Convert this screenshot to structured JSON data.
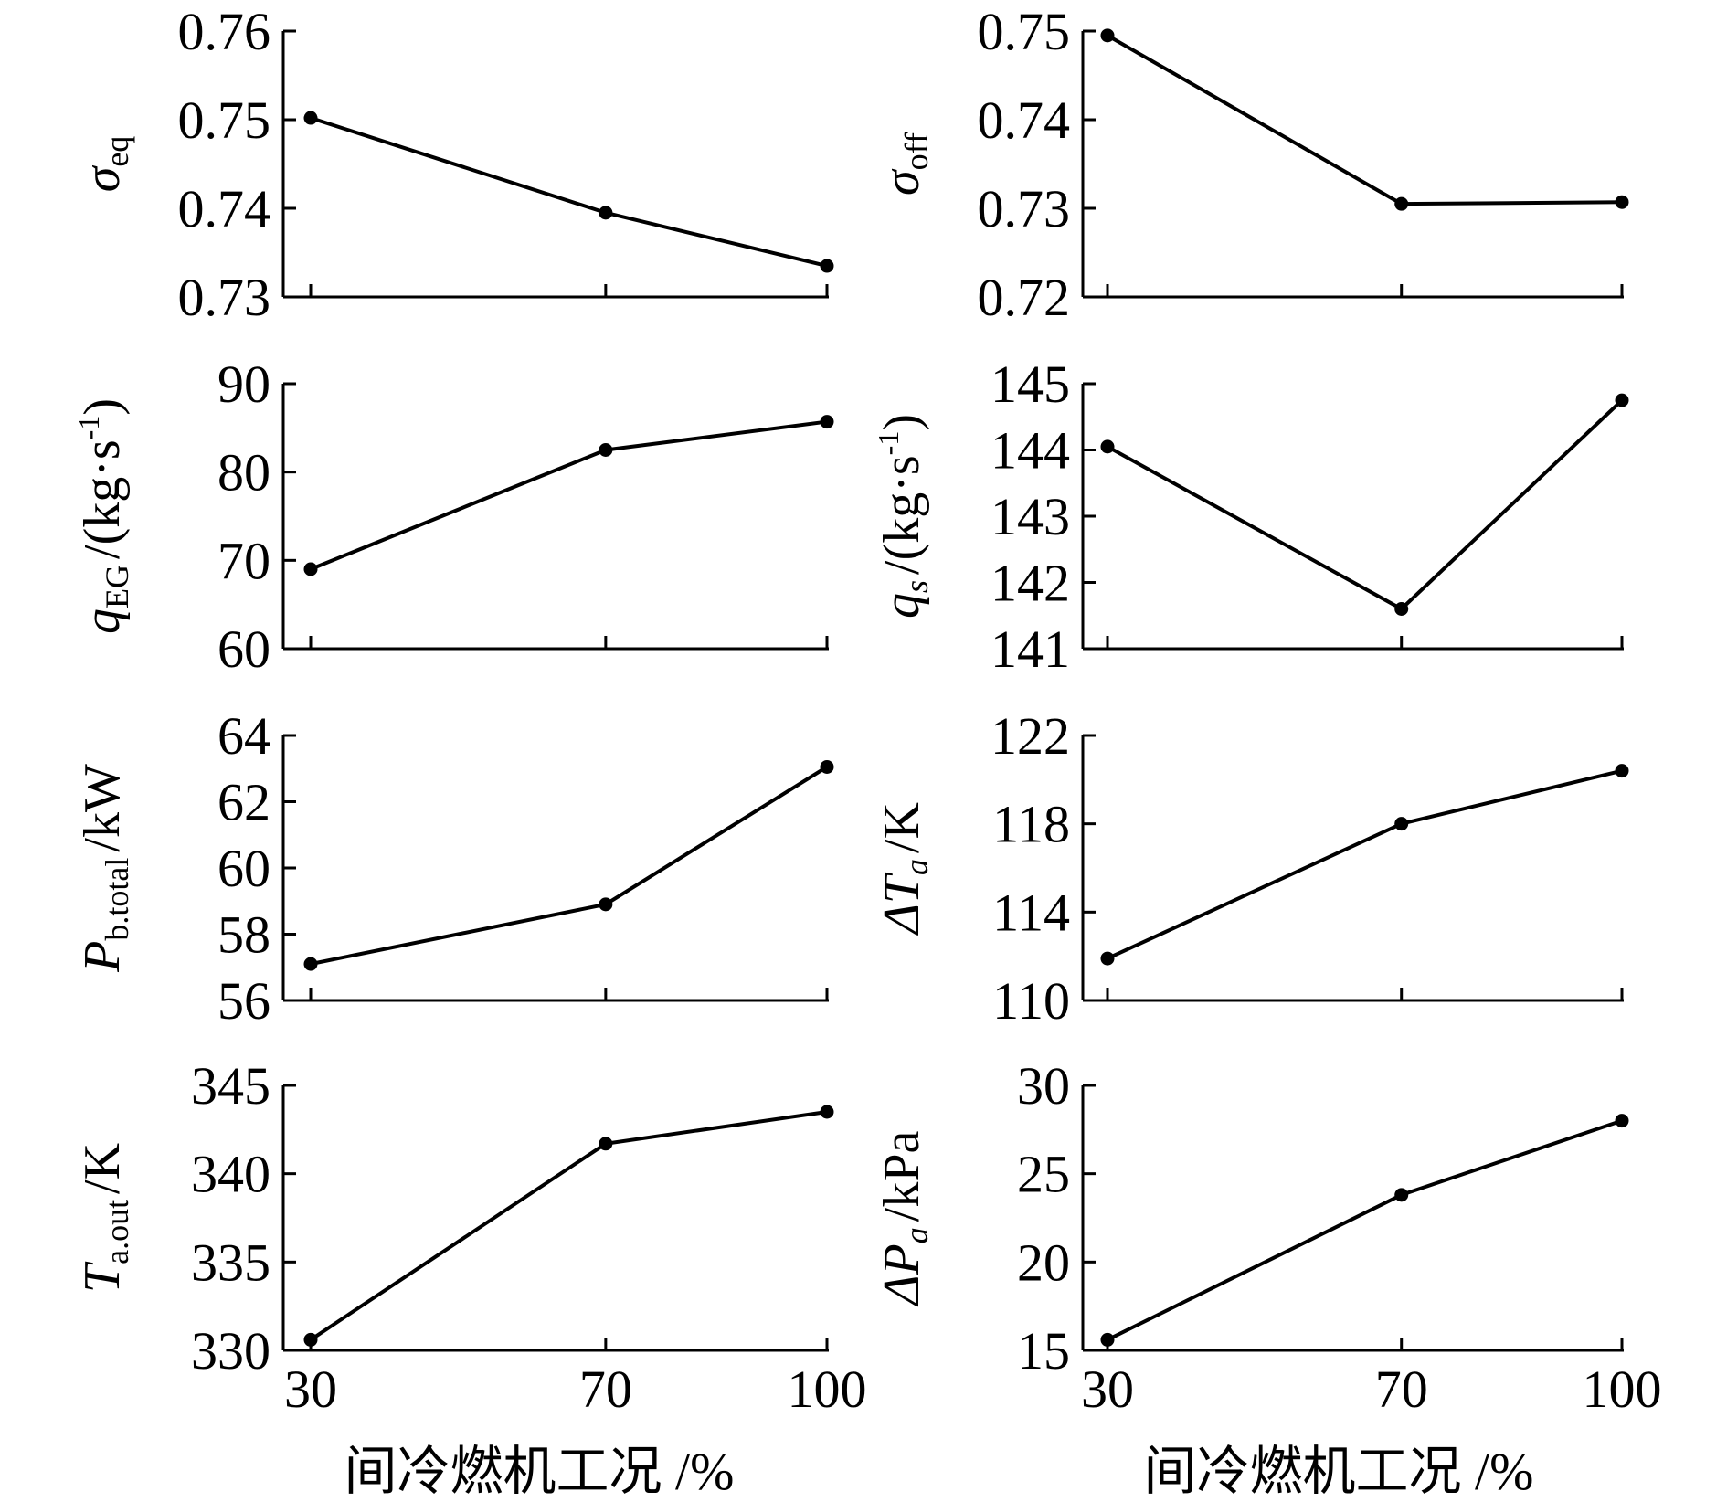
{
  "figure": {
    "xlabels": [
      "间冷燃机工况 /%",
      "间冷燃机工况 /%"
    ]
  },
  "chart_data": [
    {
      "type": "line",
      "id": "sigma-eq",
      "ylabel": {
        "main": "σ",
        "sub": "eq",
        "sup": "",
        "rest": ""
      },
      "x": [
        30,
        70,
        100
      ],
      "y": [
        0.7502,
        0.7395,
        0.7335
      ],
      "ylim": [
        0.73,
        0.76
      ],
      "yticks": [
        "0.73",
        "0.74",
        "0.75",
        "0.76"
      ],
      "xticks": [
        "30",
        "70",
        "100"
      ],
      "show_xtick_labels": false
    },
    {
      "type": "line",
      "id": "sigma-off",
      "ylabel": {
        "main": "σ",
        "sub": "off",
        "sup": "",
        "rest": ""
      },
      "x": [
        30,
        70,
        100
      ],
      "y": [
        0.7495,
        0.7305,
        0.7307
      ],
      "ylim": [
        0.72,
        0.75
      ],
      "yticks": [
        "0.72",
        "0.73",
        "0.74",
        "0.75"
      ],
      "xticks": [
        "30",
        "70",
        "100"
      ],
      "show_xtick_labels": false
    },
    {
      "type": "line",
      "id": "q-eg",
      "ylabel": {
        "main": "q",
        "sub": "EG",
        "sup": "-1",
        "rest": "/(kg·s",
        "close": ")"
      },
      "x": [
        30,
        70,
        100
      ],
      "y": [
        69,
        82.5,
        85.7
      ],
      "ylim": [
        60,
        90
      ],
      "yticks": [
        "60",
        "70",
        "80",
        "90"
      ],
      "xticks": [
        "30",
        "70",
        "100"
      ],
      "show_xtick_labels": false
    },
    {
      "type": "line",
      "id": "q-s",
      "ylabel": {
        "main": "q",
        "sub": "s",
        "sup": "-1",
        "rest": "/(kg·s",
        "close": ")"
      },
      "x": [
        30,
        70,
        100
      ],
      "y": [
        144.05,
        141.6,
        144.75
      ],
      "ylim": [
        141,
        145
      ],
      "yticks": [
        "141",
        "142",
        "143",
        "144",
        "145"
      ],
      "xticks": [
        "30",
        "70",
        "100"
      ],
      "show_xtick_labels": false
    },
    {
      "type": "line",
      "id": "p-b-total",
      "ylabel": {
        "main": "P",
        "sub": "b.total",
        "sup": "",
        "rest": "/kW"
      },
      "x": [
        30,
        70,
        100
      ],
      "y": [
        57.1,
        58.9,
        63.05
      ],
      "ylim": [
        56,
        64
      ],
      "yticks": [
        "56",
        "58",
        "60",
        "62",
        "64"
      ],
      "xticks": [
        "30",
        "70",
        "100"
      ],
      "show_xtick_labels": false
    },
    {
      "type": "line",
      "id": "delta-t-a",
      "ylabel": {
        "main": "ΔT",
        "sub": "a",
        "sup": "",
        "rest": "/K"
      },
      "x": [
        30,
        70,
        100
      ],
      "y": [
        111.9,
        118,
        120.4
      ],
      "ylim": [
        110,
        122
      ],
      "yticks": [
        "110",
        "114",
        "118",
        "122"
      ],
      "xticks": [
        "30",
        "70",
        "100"
      ],
      "show_xtick_labels": false
    },
    {
      "type": "line",
      "id": "t-a-out",
      "ylabel": {
        "main": "T",
        "sub": "a.out",
        "sup": "",
        "rest": "/K"
      },
      "x": [
        30,
        70,
        100
      ],
      "y": [
        330.6,
        341.7,
        343.5
      ],
      "ylim": [
        330,
        345
      ],
      "yticks": [
        "330",
        "335",
        "340",
        "345"
      ],
      "xticks": [
        "30",
        "70",
        "100"
      ],
      "show_xtick_labels": true
    },
    {
      "type": "line",
      "id": "delta-p-a",
      "ylabel": {
        "main": "ΔP",
        "sub": "a",
        "sup": "",
        "rest": "/kPa"
      },
      "x": [
        30,
        70,
        100
      ],
      "y": [
        15.6,
        23.8,
        28
      ],
      "ylim": [
        15,
        30
      ],
      "yticks": [
        "15",
        "20",
        "25",
        "30"
      ],
      "xticks": [
        "30",
        "70",
        "100"
      ],
      "show_xtick_labels": true
    }
  ]
}
